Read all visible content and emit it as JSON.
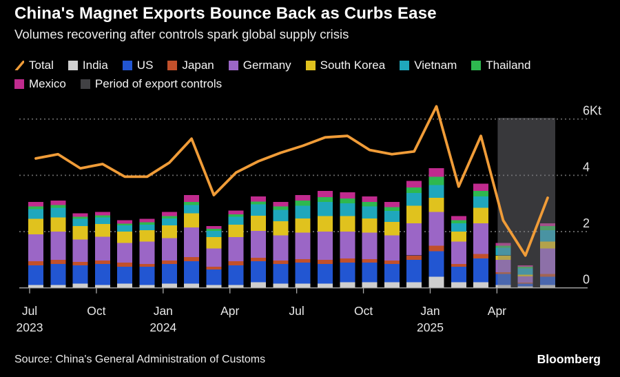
{
  "header": {
    "title": "China's Magnet Exports Bounce Back as Curbs Ease",
    "subtitle": "Volumes recovering after controls spark global supply crisis"
  },
  "legend": {
    "rows": [
      [
        {
          "label": "Total",
          "swatch": "line",
          "color": "#F09C38"
        },
        {
          "label": "India",
          "swatch": "box",
          "color": "#CFCFCF"
        },
        {
          "label": "US",
          "swatch": "box",
          "color": "#2256D2"
        },
        {
          "label": "Japan",
          "swatch": "box",
          "color": "#C1502B"
        },
        {
          "label": "Germany",
          "swatch": "box",
          "color": "#9B66C6"
        },
        {
          "label": "South Korea",
          "swatch": "box",
          "color": "#E0C21E"
        },
        {
          "label": "Vietnam",
          "swatch": "box",
          "color": "#1FA7BC"
        },
        {
          "label": "Thailand",
          "swatch": "box",
          "color": "#2EB84F"
        }
      ],
      [
        {
          "label": "Mexico",
          "swatch": "box",
          "color": "#C02B8E"
        },
        {
          "label": "Period of export controls",
          "swatch": "box",
          "color": "#414144"
        }
      ]
    ]
  },
  "chart_data": {
    "type": "bar",
    "subtype": "stacked monthly bars with total line overlay",
    "title": "China's Magnet Exports Bounce Back as Curbs Ease",
    "xlabel": "",
    "ylabel": "Kt",
    "unit": "Kt",
    "ylim": [
      0,
      6.8
    ],
    "grid": "dashed horizontal",
    "legend_position": "top",
    "categories": [
      "Jul 2023",
      "Aug 2023",
      "Sep 2023",
      "Oct 2023",
      "Nov 2023",
      "Dec 2023",
      "Jan 2024",
      "Feb 2024",
      "Mar 2024",
      "Apr 2024",
      "May 2024",
      "Jun 2024",
      "Jul 2024",
      "Aug 2024",
      "Sep 2024",
      "Oct 2024",
      "Nov 2024",
      "Dec 2024",
      "Jan 2025",
      "Feb 2025",
      "Mar 2025",
      "Apr 2025",
      "May 2025",
      "Jun 2025"
    ],
    "line_series": {
      "name": "Total",
      "color": "#F09C38",
      "values": [
        4.6,
        4.75,
        4.25,
        4.4,
        3.95,
        3.95,
        4.45,
        5.3,
        3.3,
        4.1,
        4.5,
        4.8,
        5.05,
        5.35,
        5.4,
        4.9,
        4.75,
        4.85,
        6.45,
        3.6,
        5.4,
        2.4,
        1.15,
        3.2
      ]
    },
    "series": [
      {
        "name": "India",
        "color": "#CFCFCF",
        "values": [
          0.1,
          0.1,
          0.15,
          0.1,
          0.15,
          0.1,
          0.15,
          0.15,
          0.1,
          0.1,
          0.2,
          0.15,
          0.15,
          0.15,
          0.2,
          0.2,
          0.2,
          0.2,
          0.4,
          0.2,
          0.2,
          0.1,
          0.05,
          0.1
        ]
      },
      {
        "name": "US",
        "color": "#2256D2",
        "values": [
          0.7,
          0.75,
          0.65,
          0.75,
          0.6,
          0.65,
          0.7,
          0.8,
          0.55,
          0.7,
          0.75,
          0.7,
          0.75,
          0.7,
          0.7,
          0.7,
          0.65,
          0.8,
          0.9,
          0.55,
          0.85,
          0.4,
          0.1,
          0.3
        ]
      },
      {
        "name": "Japan",
        "color": "#C1502B",
        "values": [
          0.15,
          0.15,
          0.12,
          0.12,
          0.15,
          0.1,
          0.12,
          0.15,
          0.1,
          0.15,
          0.12,
          0.12,
          0.12,
          0.15,
          0.15,
          0.12,
          0.12,
          0.15,
          0.2,
          0.1,
          0.15,
          0.05,
          0.04,
          0.1
        ]
      },
      {
        "name": "Germany",
        "color": "#9B66C6",
        "values": [
          0.95,
          1.0,
          0.8,
          0.85,
          0.7,
          0.8,
          0.8,
          1.05,
          0.65,
          0.85,
          0.95,
          0.9,
          0.95,
          1.0,
          0.95,
          0.95,
          0.9,
          1.15,
          1.2,
          0.8,
          1.1,
          0.45,
          0.22,
          0.9
        ]
      },
      {
        "name": "South Korea",
        "color": "#E0C21E",
        "values": [
          0.55,
          0.5,
          0.48,
          0.45,
          0.4,
          0.4,
          0.45,
          0.5,
          0.4,
          0.45,
          0.55,
          0.5,
          0.5,
          0.55,
          0.55,
          0.5,
          0.48,
          0.62,
          0.5,
          0.35,
          0.55,
          0.15,
          0.06,
          0.25
        ]
      },
      {
        "name": "Vietnam",
        "color": "#1FA7BC",
        "values": [
          0.35,
          0.35,
          0.25,
          0.23,
          0.22,
          0.2,
          0.25,
          0.3,
          0.22,
          0.28,
          0.4,
          0.4,
          0.45,
          0.5,
          0.45,
          0.42,
          0.38,
          0.45,
          0.45,
          0.3,
          0.4,
          0.27,
          0.22,
          0.4
        ]
      },
      {
        "name": "Thailand",
        "color": "#2EB84F",
        "values": [
          0.1,
          0.1,
          0.08,
          0.08,
          0.06,
          0.08,
          0.08,
          0.1,
          0.08,
          0.08,
          0.1,
          0.12,
          0.18,
          0.18,
          0.18,
          0.16,
          0.14,
          0.2,
          0.3,
          0.1,
          0.2,
          0.08,
          0.06,
          0.15
        ]
      },
      {
        "name": "Mexico",
        "color": "#C02B8E",
        "values": [
          0.15,
          0.15,
          0.12,
          0.12,
          0.12,
          0.12,
          0.15,
          0.25,
          0.1,
          0.14,
          0.18,
          0.16,
          0.2,
          0.22,
          0.22,
          0.2,
          0.18,
          0.23,
          0.3,
          0.15,
          0.25,
          0.1,
          0.05,
          0.1
        ]
      }
    ],
    "shaded_region": {
      "label": "Period of export controls",
      "from_month": "Apr 2025",
      "to_month": "Jun 2025",
      "from_index": 21,
      "to_index": 23,
      "color": "#7D7D82",
      "opacity": 0.45
    },
    "y_axis": {
      "ticks": [
        0,
        2,
        4,
        6
      ],
      "tick_labels": [
        "0",
        "2",
        "4",
        "6Kt"
      ]
    },
    "x_axis": {
      "ticks": [
        {
          "month_index": 0,
          "label": "Jul",
          "year": "2023"
        },
        {
          "month_index": 3,
          "label": "Oct",
          "year": ""
        },
        {
          "month_index": 6,
          "label": "Jan",
          "year": "2024"
        },
        {
          "month_index": 9,
          "label": "Apr",
          "year": ""
        },
        {
          "month_index": 12,
          "label": "Jul",
          "year": ""
        },
        {
          "month_index": 15,
          "label": "Oct",
          "year": ""
        },
        {
          "month_index": 18,
          "label": "Jan",
          "year": "2025"
        },
        {
          "month_index": 21,
          "label": "Apr",
          "year": ""
        }
      ]
    }
  },
  "footer": {
    "source": "Source: China's General Administration of Customs",
    "brand": "Bloomberg"
  }
}
